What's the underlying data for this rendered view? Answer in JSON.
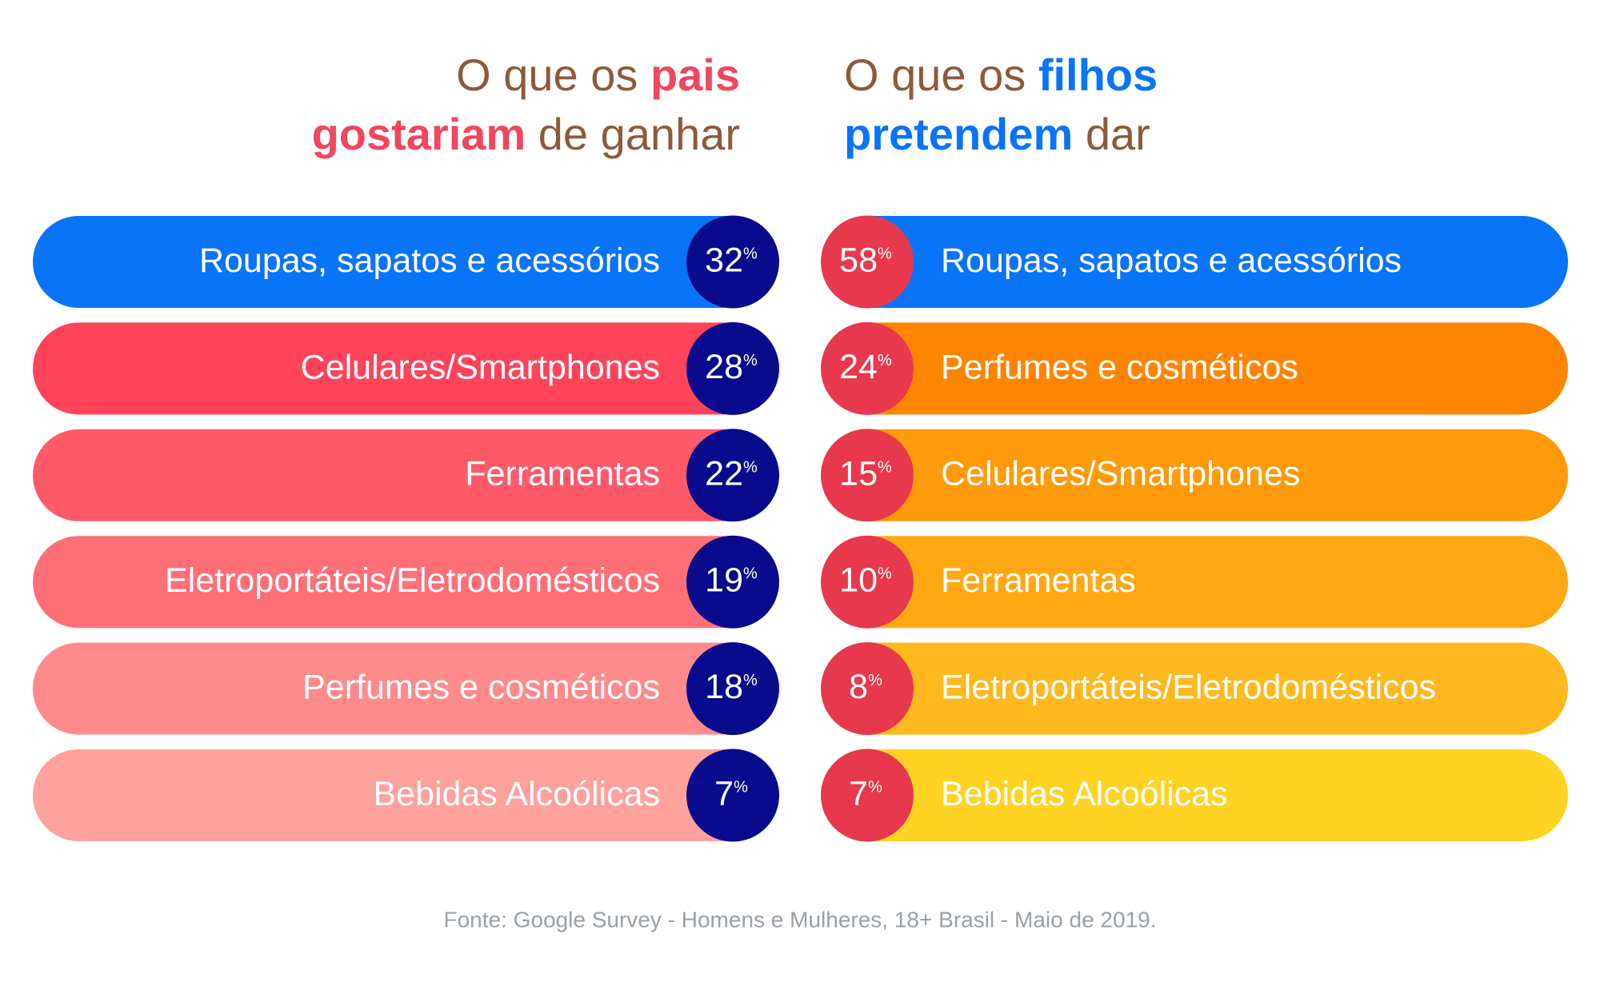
{
  "left": {
    "title_lines": [
      [
        {
          "text": "O que os",
          "emphasis": false
        },
        {
          "text": "pais",
          "emphasis": true
        }
      ],
      [
        {
          "text": "gostariam",
          "emphasis": true
        },
        {
          "text": "de ganhar",
          "emphasis": false
        }
      ]
    ],
    "emphasis_color": "#f0465e",
    "circle_color": "#0a0a8c",
    "unit": "%",
    "items": [
      {
        "label": "Roupas, sapatos e acessórios",
        "value": 32,
        "color": "#0a74f9"
      },
      {
        "label": "Celulares/Smartphones",
        "value": 28,
        "color": "#ff445a"
      },
      {
        "label": "Ferramentas",
        "value": 22,
        "color": "#ff5a6a"
      },
      {
        "label": "Eletroportáteis/Eletrodomésticos",
        "value": 19,
        "color": "#ff6f78"
      },
      {
        "label": "Perfumes e cosméticos",
        "value": 18,
        "color": "#ff8a8c"
      },
      {
        "label": "Bebidas Alcoólicas",
        "value": 7,
        "color": "#ffa19d"
      }
    ]
  },
  "right": {
    "title_lines": [
      [
        {
          "text": "O que os",
          "emphasis": false
        },
        {
          "text": "filhos",
          "emphasis": true
        }
      ],
      [
        {
          "text": "pretendem",
          "emphasis": true
        },
        {
          "text": "dar",
          "emphasis": false
        }
      ]
    ],
    "emphasis_color": "#0a74f9",
    "circle_color": "#e8384e",
    "unit": "%",
    "items": [
      {
        "label": "Roupas, sapatos e acessórios",
        "value": 58,
        "color": "#0a74f9"
      },
      {
        "label": "Perfumes e cosméticos",
        "value": 24,
        "color": "#ff8500"
      },
      {
        "label": "Celulares/Smartphones",
        "value": 15,
        "color": "#ff9a0a"
      },
      {
        "label": "Ferramentas",
        "value": 10,
        "color": "#ffa814"
      },
      {
        "label": "Eletroportáteis/Eletrodomésticos",
        "value": 8,
        "color": "#ffb81e"
      },
      {
        "label": "Bebidas Alcoólicas",
        "value": 7,
        "color": "#ffd324"
      }
    ]
  },
  "footer": "Fonte: Google Survey - Homens e Mulheres, 18+ Brasil - Maio de 2019."
}
